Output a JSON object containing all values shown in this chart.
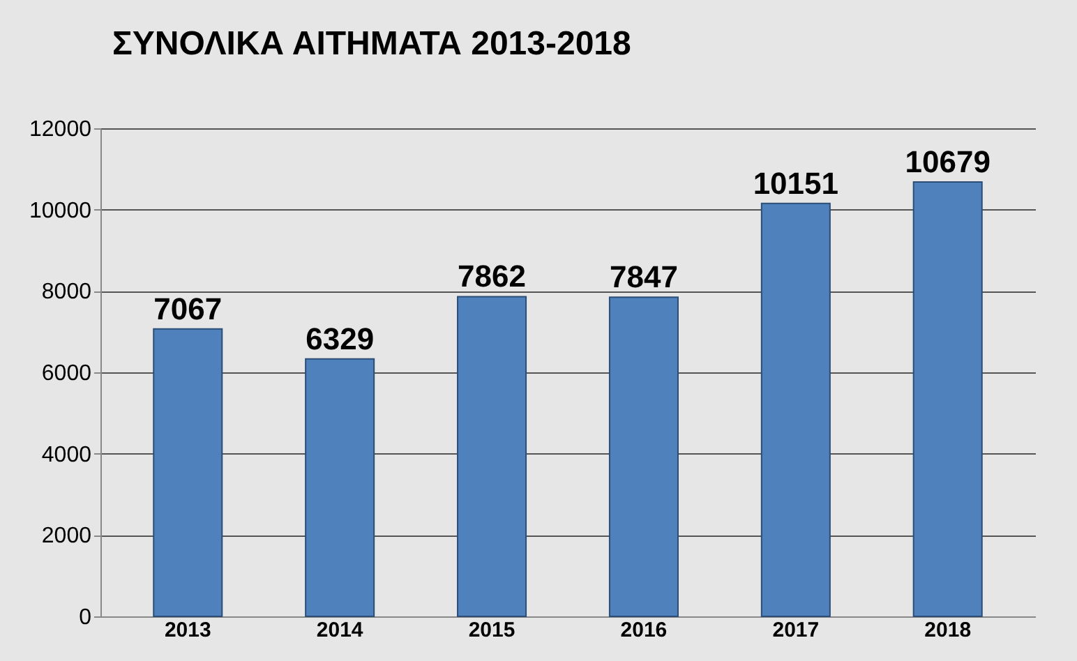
{
  "chart_data": {
    "type": "bar",
    "title": "ΣΥΝΟΛΙΚΑ ΑΙΤΗΜΑΤΑ 2013-2018",
    "categories": [
      "2013",
      "2014",
      "2015",
      "2016",
      "2017",
      "2018"
    ],
    "values": [
      7067,
      6329,
      7862,
      7847,
      10151,
      10679
    ],
    "color": "#4f81bd",
    "ylim": [
      0,
      12000
    ],
    "yticks": [
      0,
      2000,
      4000,
      6000,
      8000,
      10000,
      12000
    ],
    "grid": "y",
    "data_labels": true
  }
}
